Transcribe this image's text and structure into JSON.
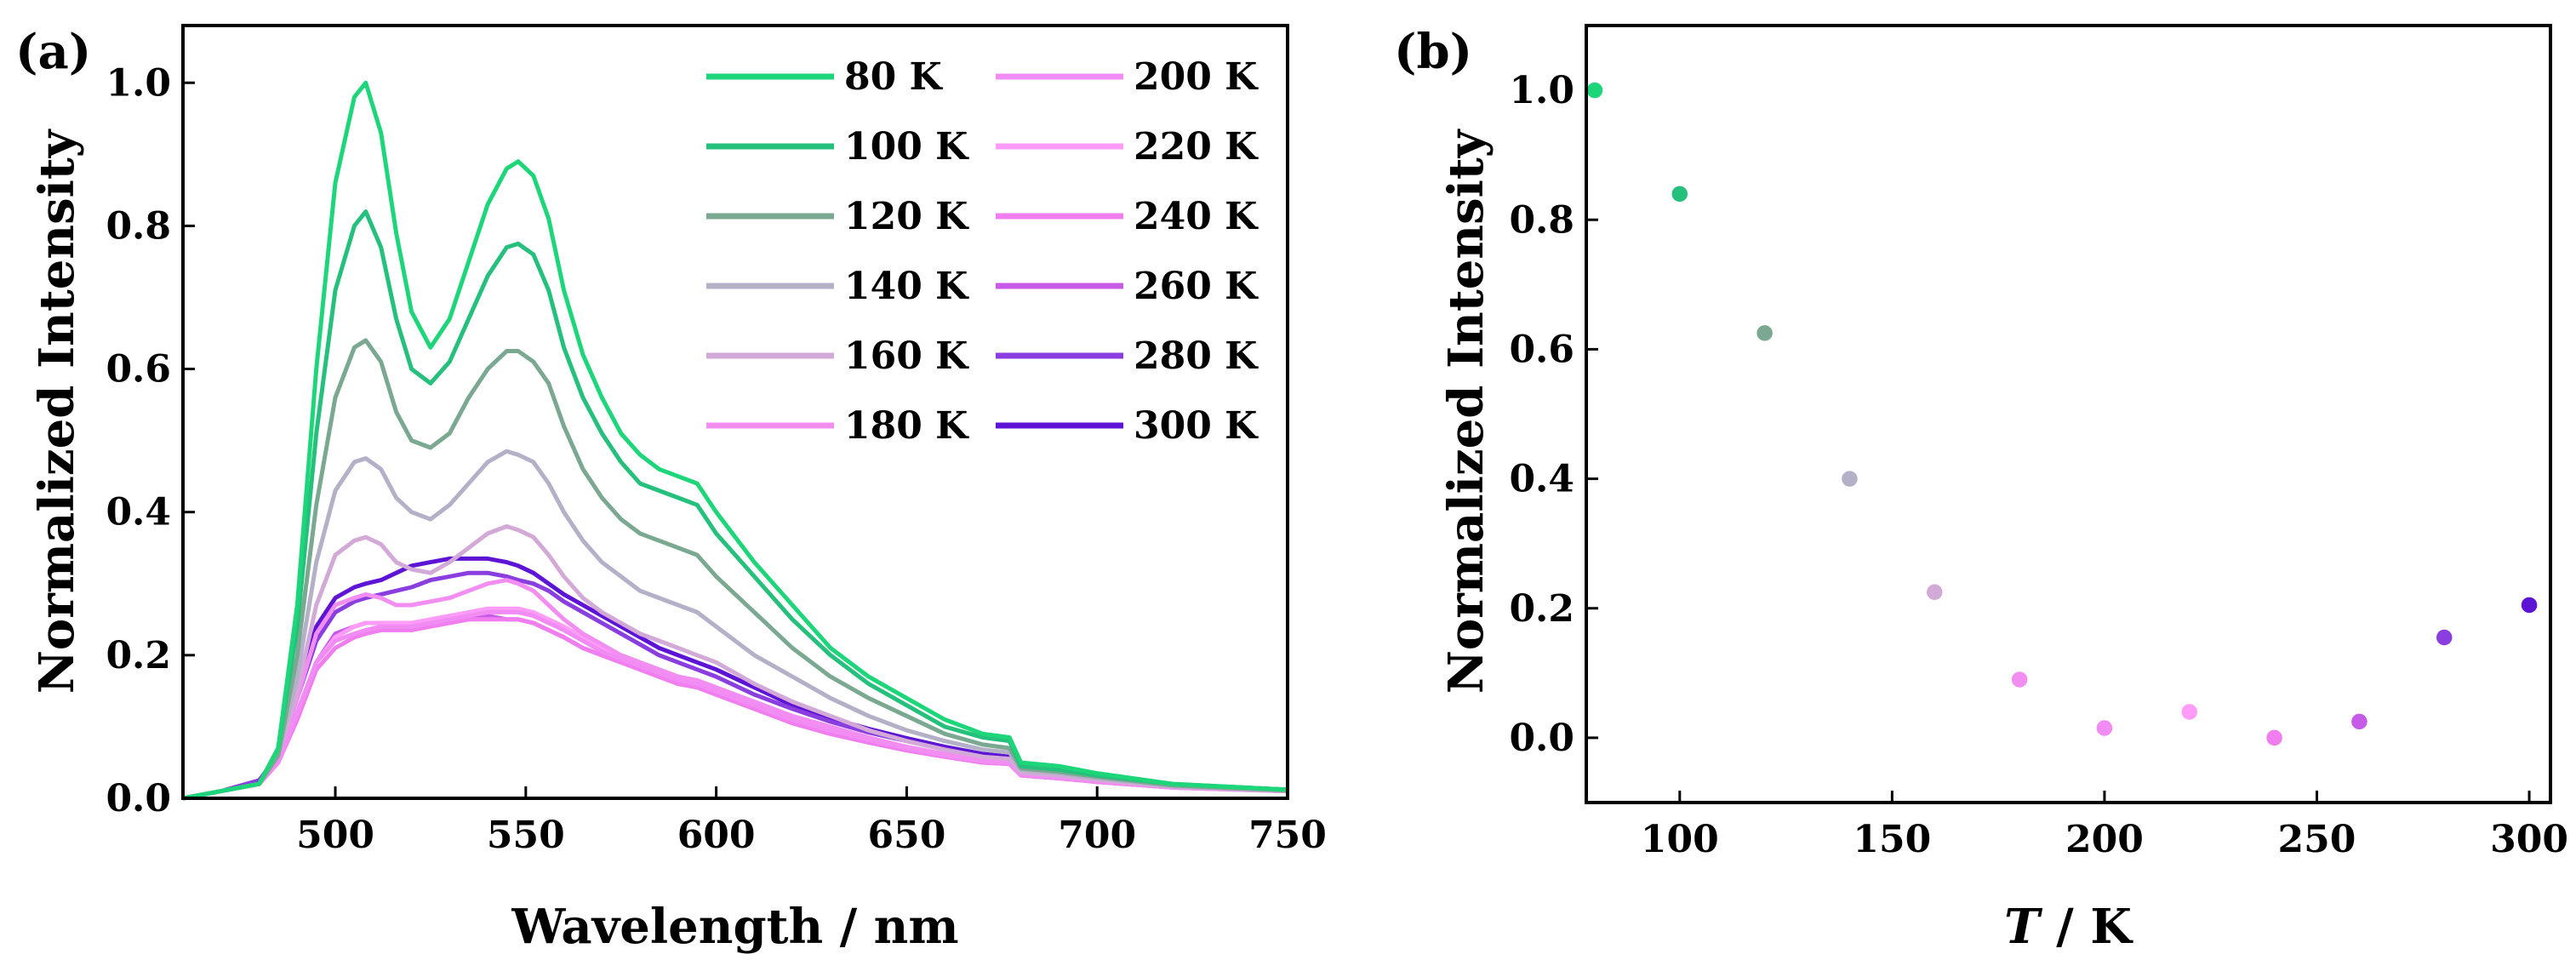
{
  "chart_data": [
    {
      "panel_label": "(a)",
      "type": "line",
      "xlabel": "Wavelength / nm",
      "ylabel": "Normalized Intensity",
      "xlim": [
        460,
        750
      ],
      "ylim": [
        0,
        1.08
      ],
      "xticks": [
        500,
        550,
        600,
        650,
        700,
        750
      ],
      "xtick_labels": [
        "500",
        "550",
        "600",
        "650",
        "700",
        "750"
      ],
      "yticks": [
        0,
        0.2,
        0.4,
        0.6,
        0.8,
        1.0
      ],
      "ytick_labels": [
        "0.0",
        "0.2",
        "0.4",
        "0.6",
        "0.8",
        "1.0"
      ],
      "legend_placement": "top-right",
      "x": [
        460,
        470,
        480,
        485,
        490,
        495,
        500,
        505,
        508,
        512,
        516,
        520,
        525,
        530,
        535,
        540,
        545,
        548,
        552,
        556,
        560,
        565,
        570,
        575,
        580,
        585,
        590,
        595,
        600,
        610,
        620,
        630,
        640,
        650,
        660,
        670,
        677,
        680,
        690,
        700,
        720,
        750
      ],
      "series": [
        {
          "name": "80 K",
          "color": "#1ed67a",
          "values": [
            0.0,
            0.01,
            0.02,
            0.07,
            0.27,
            0.6,
            0.86,
            0.98,
            1.0,
            0.93,
            0.79,
            0.68,
            0.63,
            0.67,
            0.75,
            0.83,
            0.88,
            0.89,
            0.87,
            0.81,
            0.71,
            0.62,
            0.56,
            0.51,
            0.48,
            0.46,
            0.45,
            0.44,
            0.4,
            0.33,
            0.27,
            0.21,
            0.17,
            0.14,
            0.11,
            0.09,
            0.085,
            0.05,
            0.045,
            0.035,
            0.02,
            0.012
          ]
        },
        {
          "name": "100 K",
          "color": "#24c07c",
          "values": [
            0.0,
            0.01,
            0.02,
            0.07,
            0.24,
            0.51,
            0.71,
            0.8,
            0.82,
            0.77,
            0.67,
            0.6,
            0.58,
            0.61,
            0.67,
            0.73,
            0.77,
            0.775,
            0.76,
            0.71,
            0.63,
            0.56,
            0.51,
            0.47,
            0.44,
            0.43,
            0.42,
            0.41,
            0.37,
            0.31,
            0.25,
            0.2,
            0.16,
            0.13,
            0.1,
            0.085,
            0.08,
            0.045,
            0.04,
            0.032,
            0.02,
            0.012
          ]
        },
        {
          "name": "120 K",
          "color": "#7aa890",
          "values": [
            0.0,
            0.01,
            0.02,
            0.06,
            0.2,
            0.41,
            0.56,
            0.63,
            0.64,
            0.61,
            0.54,
            0.5,
            0.49,
            0.51,
            0.56,
            0.6,
            0.625,
            0.625,
            0.61,
            0.58,
            0.52,
            0.46,
            0.42,
            0.39,
            0.37,
            0.36,
            0.35,
            0.34,
            0.31,
            0.26,
            0.21,
            0.17,
            0.14,
            0.115,
            0.09,
            0.075,
            0.07,
            0.042,
            0.037,
            0.03,
            0.018,
            0.011
          ]
        },
        {
          "name": "140 K",
          "color": "#b3b0c7",
          "values": [
            0.0,
            0.01,
            0.02,
            0.06,
            0.17,
            0.33,
            0.43,
            0.47,
            0.475,
            0.46,
            0.42,
            0.4,
            0.39,
            0.41,
            0.44,
            0.47,
            0.485,
            0.48,
            0.47,
            0.44,
            0.4,
            0.36,
            0.33,
            0.31,
            0.29,
            0.28,
            0.27,
            0.26,
            0.24,
            0.2,
            0.17,
            0.14,
            0.115,
            0.095,
            0.08,
            0.068,
            0.064,
            0.04,
            0.035,
            0.028,
            0.017,
            0.011
          ]
        },
        {
          "name": "160 K",
          "color": "#d3a9d8",
          "values": [
            0.0,
            0.01,
            0.02,
            0.06,
            0.15,
            0.27,
            0.34,
            0.36,
            0.365,
            0.355,
            0.33,
            0.32,
            0.315,
            0.33,
            0.35,
            0.37,
            0.38,
            0.375,
            0.365,
            0.34,
            0.31,
            0.28,
            0.26,
            0.245,
            0.23,
            0.22,
            0.21,
            0.2,
            0.19,
            0.16,
            0.135,
            0.115,
            0.095,
            0.08,
            0.068,
            0.058,
            0.055,
            0.036,
            0.032,
            0.026,
            0.016,
            0.01
          ]
        },
        {
          "name": "180 K",
          "color": "#f28ef2",
          "values": [
            0.0,
            0.01,
            0.02,
            0.06,
            0.14,
            0.23,
            0.27,
            0.28,
            0.285,
            0.28,
            0.27,
            0.27,
            0.275,
            0.28,
            0.29,
            0.3,
            0.305,
            0.3,
            0.29,
            0.27,
            0.25,
            0.23,
            0.215,
            0.2,
            0.19,
            0.18,
            0.17,
            0.165,
            0.155,
            0.135,
            0.115,
            0.1,
            0.085,
            0.072,
            0.062,
            0.053,
            0.05,
            0.034,
            0.03,
            0.025,
            0.016,
            0.01
          ]
        },
        {
          "name": "200 K",
          "color": "#f28cf5",
          "values": [
            0.0,
            0.01,
            0.02,
            0.05,
            0.12,
            0.19,
            0.22,
            0.23,
            0.235,
            0.24,
            0.24,
            0.24,
            0.245,
            0.25,
            0.255,
            0.26,
            0.26,
            0.26,
            0.255,
            0.245,
            0.235,
            0.22,
            0.205,
            0.195,
            0.185,
            0.175,
            0.165,
            0.16,
            0.15,
            0.13,
            0.11,
            0.095,
            0.082,
            0.07,
            0.06,
            0.052,
            0.049,
            0.033,
            0.029,
            0.024,
            0.015,
            0.01
          ]
        },
        {
          "name": "220 K",
          "color": "#ff9cf8",
          "values": [
            0.0,
            0.01,
            0.02,
            0.05,
            0.12,
            0.19,
            0.225,
            0.24,
            0.245,
            0.245,
            0.245,
            0.245,
            0.25,
            0.255,
            0.26,
            0.265,
            0.265,
            0.265,
            0.26,
            0.25,
            0.24,
            0.225,
            0.21,
            0.2,
            0.19,
            0.18,
            0.17,
            0.16,
            0.15,
            0.13,
            0.11,
            0.095,
            0.082,
            0.07,
            0.06,
            0.052,
            0.049,
            0.033,
            0.029,
            0.024,
            0.015,
            0.01
          ]
        },
        {
          "name": "240 K",
          "color": "#f17eef",
          "values": [
            0.0,
            0.01,
            0.02,
            0.05,
            0.11,
            0.18,
            0.21,
            0.225,
            0.23,
            0.235,
            0.235,
            0.235,
            0.24,
            0.245,
            0.25,
            0.25,
            0.25,
            0.25,
            0.245,
            0.235,
            0.225,
            0.21,
            0.2,
            0.19,
            0.18,
            0.17,
            0.16,
            0.155,
            0.145,
            0.125,
            0.105,
            0.09,
            0.078,
            0.067,
            0.058,
            0.05,
            0.048,
            0.032,
            0.028,
            0.023,
            0.015,
            0.01
          ]
        },
        {
          "name": "260 K",
          "color": "#c85ae8",
          "values": [
            0.0,
            0.01,
            0.02,
            0.05,
            0.12,
            0.19,
            0.23,
            0.24,
            0.245,
            0.245,
            0.245,
            0.245,
            0.245,
            0.25,
            0.25,
            0.255,
            0.25,
            0.25,
            0.245,
            0.235,
            0.225,
            0.21,
            0.2,
            0.19,
            0.18,
            0.17,
            0.16,
            0.155,
            0.145,
            0.125,
            0.105,
            0.09,
            0.078,
            0.067,
            0.058,
            0.05,
            0.048,
            0.032,
            0.028,
            0.023,
            0.015,
            0.01
          ]
        },
        {
          "name": "280 K",
          "color": "#8b3ee0",
          "values": [
            0.0,
            0.01,
            0.025,
            0.06,
            0.14,
            0.22,
            0.26,
            0.275,
            0.28,
            0.285,
            0.29,
            0.295,
            0.305,
            0.31,
            0.315,
            0.315,
            0.31,
            0.305,
            0.3,
            0.29,
            0.275,
            0.26,
            0.245,
            0.23,
            0.215,
            0.2,
            0.19,
            0.18,
            0.17,
            0.145,
            0.125,
            0.107,
            0.092,
            0.08,
            0.068,
            0.058,
            0.055,
            0.038,
            0.033,
            0.027,
            0.018,
            0.012
          ]
        },
        {
          "name": "300 K",
          "color": "#5e14d4",
          "values": [
            0.0,
            0.01,
            0.025,
            0.06,
            0.15,
            0.24,
            0.28,
            0.295,
            0.3,
            0.305,
            0.315,
            0.325,
            0.33,
            0.335,
            0.335,
            0.335,
            0.33,
            0.325,
            0.315,
            0.3,
            0.285,
            0.27,
            0.255,
            0.24,
            0.225,
            0.21,
            0.2,
            0.19,
            0.18,
            0.155,
            0.13,
            0.112,
            0.097,
            0.084,
            0.072,
            0.062,
            0.058,
            0.04,
            0.035,
            0.029,
            0.019,
            0.012
          ]
        }
      ]
    },
    {
      "panel_label": "(b)",
      "type": "scatter",
      "xlabel_italic": "T",
      "xlabel_rest": " / K",
      "ylabel": "Normalized Intensity",
      "xlim": [
        78,
        305
      ],
      "ylim": [
        -0.1,
        1.1
      ],
      "xticks": [
        100,
        150,
        200,
        250,
        300
      ],
      "xtick_labels": [
        "100",
        "150",
        "200",
        "250",
        "300"
      ],
      "yticks": [
        0,
        0.2,
        0.4,
        0.6,
        0.8,
        1.0
      ],
      "ytick_labels": [
        "0.0",
        "0.2",
        "0.4",
        "0.6",
        "0.8",
        "1.0"
      ],
      "points": [
        {
          "x": 80,
          "y": 1.0,
          "color": "#1ed67a"
        },
        {
          "x": 100,
          "y": 0.84,
          "color": "#24c07c"
        },
        {
          "x": 120,
          "y": 0.625,
          "color": "#7aa890"
        },
        {
          "x": 140,
          "y": 0.4,
          "color": "#b3b0c7"
        },
        {
          "x": 160,
          "y": 0.225,
          "color": "#d3a9d8"
        },
        {
          "x": 180,
          "y": 0.09,
          "color": "#f28ef2"
        },
        {
          "x": 200,
          "y": 0.015,
          "color": "#f28cf5"
        },
        {
          "x": 220,
          "y": 0.04,
          "color": "#ff9cf8"
        },
        {
          "x": 240,
          "y": 0.0,
          "color": "#f17eef"
        },
        {
          "x": 260,
          "y": 0.025,
          "color": "#c85ae8"
        },
        {
          "x": 280,
          "y": 0.155,
          "color": "#8b3ee0"
        },
        {
          "x": 300,
          "y": 0.205,
          "color": "#5e14d4"
        }
      ]
    }
  ]
}
